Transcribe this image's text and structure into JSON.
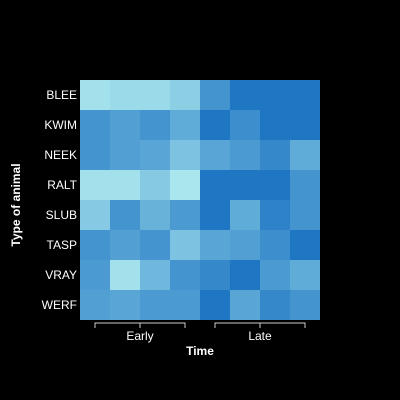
{
  "chart_data": {
    "type": "heatmap",
    "title": "",
    "xlabel": "Time",
    "ylabel": "Type of animal",
    "rows": [
      "BLEE",
      "KWIM",
      "NEEK",
      "RALT",
      "SLUB",
      "TASP",
      "VRAY",
      "WERF"
    ],
    "column_groups": [
      {
        "label": "Early",
        "columns": [
          0,
          1,
          2,
          3
        ]
      },
      {
        "label": "Late",
        "columns": [
          4,
          5,
          6,
          7
        ]
      }
    ],
    "value_range": [
      0,
      1
    ],
    "color_low": "#b0ecf0",
    "color_high": "#1f77c4",
    "grid": false,
    "values": [
      [
        0.1,
        0.15,
        0.15,
        0.25,
        0.75,
        1.0,
        1.0,
        1.0
      ],
      [
        0.75,
        0.65,
        0.75,
        0.55,
        1.0,
        0.8,
        1.0,
        1.0
      ],
      [
        0.75,
        0.65,
        0.6,
        0.35,
        0.6,
        0.7,
        0.85,
        0.55
      ],
      [
        0.1,
        0.1,
        0.3,
        0.05,
        1.0,
        1.0,
        1.0,
        0.75
      ],
      [
        0.3,
        0.75,
        0.5,
        0.7,
        1.0,
        0.55,
        0.9,
        0.75
      ],
      [
        0.75,
        0.65,
        0.75,
        0.35,
        0.6,
        0.65,
        0.8,
        1.0
      ],
      [
        0.7,
        0.1,
        0.45,
        0.75,
        0.85,
        1.0,
        0.7,
        0.55
      ],
      [
        0.65,
        0.6,
        0.7,
        0.7,
        1.0,
        0.6,
        0.85,
        0.75
      ]
    ]
  }
}
